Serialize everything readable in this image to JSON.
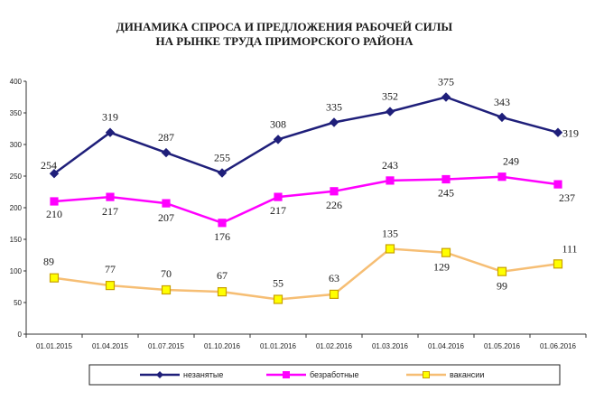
{
  "chart_data": {
    "type": "line",
    "title_lines": [
      "ДИНАМИКА СПРОСА И ПРЕДЛОЖЕНИЯ РАБОЧЕЙ СИЛЫ",
      "НА РЫНКЕ ТРУДА ПРИМОРСКОГО РАЙОНА"
    ],
    "categories": [
      "01.01.2015",
      "01.04.2015",
      "01.07.2015",
      "01.10.2016",
      "01.01.2016",
      "01.02.2016",
      "01.03.2016",
      "01.04.2016",
      "01.05.2016",
      "01.06.2016"
    ],
    "ylim": [
      0,
      400
    ],
    "yticks": [
      0,
      50,
      100,
      150,
      200,
      250,
      300,
      350,
      400
    ],
    "grid": false,
    "legend_position": "bottom",
    "series": [
      {
        "name": "незанятые",
        "color": "#1f1f7a",
        "marker": "diamond",
        "values": [
          254,
          319,
          287,
          255,
          308,
          335,
          352,
          375,
          343,
          319
        ]
      },
      {
        "name": "безработные",
        "color": "#ff00ff",
        "marker": "square",
        "values": [
          210,
          217,
          207,
          176,
          217,
          226,
          243,
          245,
          249,
          237
        ]
      },
      {
        "name": "вакансии",
        "color": "#f6be74",
        "marker_fill": "#ffff00",
        "marker_stroke": "#c8a000",
        "marker": "square",
        "values": [
          89,
          77,
          70,
          67,
          55,
          63,
          135,
          129,
          99,
          111
        ]
      }
    ]
  }
}
